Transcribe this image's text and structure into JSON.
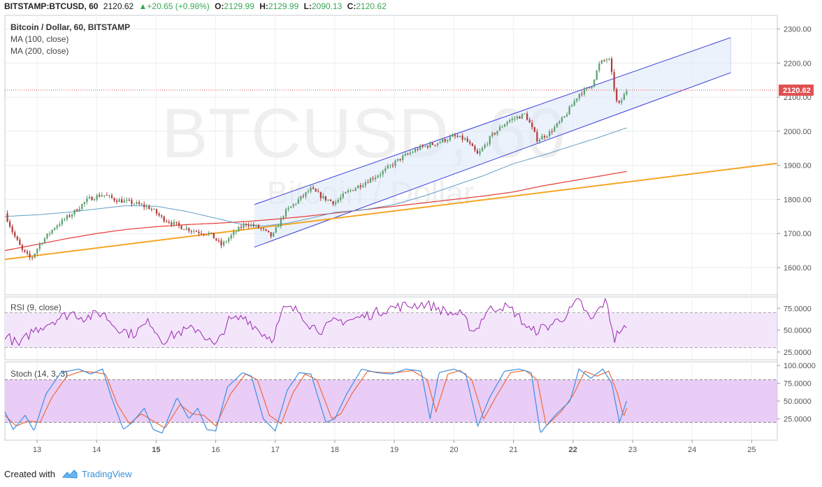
{
  "header": {
    "symbol": "BITSTAMP:BTCUSD, 60",
    "last": "2120.62",
    "change": "▲+20.65 (+0.98%)",
    "o_label": "O:",
    "o_val": "2129.99",
    "h_label": "H:",
    "h_val": "2129.99",
    "l_label": "L:",
    "l_val": "2090.13",
    "c_label": "C:",
    "c_val": "2120.62"
  },
  "legend": {
    "title": "Bitcoin / Dollar, 60, BITSTAMP",
    "ma100": "MA (100, close)",
    "ma200": "MA (200, close)",
    "rsi": "RSI (9, close)",
    "stoch": "Stoch (14, 3, 3)"
  },
  "watermark": {
    "big": "BTCUSD, 60",
    "small": "Bitcoin / Dollar"
  },
  "footer": {
    "created": "Created with",
    "brand": "TradingView"
  },
  "colors": {
    "bull": "#5a9e6f",
    "bear": "#b03a3a",
    "ma100": "#5f9ec4",
    "ma200": "#e53935",
    "trend": "#f5a623",
    "channel": "#3b3bdb",
    "rsi": "#9c27b0",
    "stoch_k": "#3d8fe0",
    "stoch_d": "#f06a3a"
  },
  "chart_data": [
    {
      "type": "candlestick",
      "title": "Bitcoin / Dollar, 60, BITSTAMP",
      "x_ticks": [
        {
          "label": "13",
          "x": 13,
          "bold": false
        },
        {
          "label": "14",
          "x": 14,
          "bold": false
        },
        {
          "label": "15",
          "x": 15,
          "bold": true
        },
        {
          "label": "16",
          "x": 16,
          "bold": false
        },
        {
          "label": "17",
          "x": 17,
          "bold": false
        },
        {
          "label": "18",
          "x": 18,
          "bold": false
        },
        {
          "label": "19",
          "x": 19,
          "bold": false
        },
        {
          "label": "20",
          "x": 20,
          "bold": false
        },
        {
          "label": "21",
          "x": 21,
          "bold": false
        },
        {
          "label": "22",
          "x": 22,
          "bold": true
        },
        {
          "label": "23",
          "x": 23,
          "bold": false
        },
        {
          "label": "24",
          "x": 24,
          "bold": false
        },
        {
          "label": "25",
          "x": 25,
          "bold": false
        }
      ],
      "x_range": [
        12.46,
        25.43
      ],
      "y_range": [
        1520,
        2340
      ],
      "y_ticks": [
        "1600.00",
        "1700.00",
        "1800.00",
        "1900.00",
        "2000.00",
        "2100.00",
        "2200.00",
        "2300.00"
      ],
      "last_price": 2120.62,
      "last_price_label": "2120.62",
      "price_anchors": [
        [
          12.46,
          1760
        ],
        [
          12.6,
          1700
        ],
        [
          12.75,
          1650
        ],
        [
          12.9,
          1625
        ],
        [
          13.05,
          1670
        ],
        [
          13.3,
          1720
        ],
        [
          13.6,
          1760
        ],
        [
          13.85,
          1800
        ],
        [
          14.1,
          1815
        ],
        [
          14.3,
          1800
        ],
        [
          14.6,
          1790
        ],
        [
          14.9,
          1775
        ],
        [
          15.1,
          1745
        ],
        [
          15.4,
          1720
        ],
        [
          15.7,
          1705
        ],
        [
          15.9,
          1700
        ],
        [
          16.1,
          1665
        ],
        [
          16.3,
          1700
        ],
        [
          16.5,
          1730
        ],
        [
          16.75,
          1715
        ],
        [
          16.95,
          1690
        ],
        [
          17.15,
          1760
        ],
        [
          17.4,
          1800
        ],
        [
          17.6,
          1830
        ],
        [
          17.8,
          1805
        ],
        [
          18.0,
          1790
        ],
        [
          18.2,
          1820
        ],
        [
          18.5,
          1850
        ],
        [
          18.8,
          1880
        ],
        [
          19.1,
          1920
        ],
        [
          19.4,
          1950
        ],
        [
          19.7,
          1965
        ],
        [
          20.0,
          1985
        ],
        [
          20.2,
          1975
        ],
        [
          20.4,
          1930
        ],
        [
          20.65,
          1990
        ],
        [
          20.9,
          2030
        ],
        [
          21.2,
          2050
        ],
        [
          21.4,
          1975
        ],
        [
          21.6,
          1995
        ],
        [
          21.85,
          2040
        ],
        [
          22.1,
          2110
        ],
        [
          22.3,
          2130
        ],
        [
          22.45,
          2200
        ],
        [
          22.6,
          2215
        ],
        [
          22.75,
          2070
        ],
        [
          22.9,
          2120
        ]
      ],
      "ma100": [
        [
          12.46,
          1750
        ],
        [
          13.0,
          1755
        ],
        [
          13.5,
          1762
        ],
        [
          14.0,
          1772
        ],
        [
          14.5,
          1782
        ],
        [
          15.0,
          1780
        ],
        [
          15.5,
          1765
        ],
        [
          16.0,
          1745
        ],
        [
          16.4,
          1728
        ],
        [
          16.8,
          1722
        ],
        [
          17.2,
          1730
        ],
        [
          17.6,
          1745
        ],
        [
          18.0,
          1762
        ],
        [
          18.5,
          1770
        ],
        [
          19.0,
          1785
        ],
        [
          19.5,
          1810
        ],
        [
          20.0,
          1840
        ],
        [
          20.5,
          1870
        ],
        [
          21.0,
          1905
        ],
        [
          21.5,
          1930
        ],
        [
          22.0,
          1958
        ],
        [
          22.4,
          1980
        ],
        [
          22.9,
          2010
        ]
      ],
      "ma200": [
        [
          12.46,
          1650
        ],
        [
          13.0,
          1668
        ],
        [
          13.5,
          1685
        ],
        [
          14.0,
          1700
        ],
        [
          14.5,
          1712
        ],
        [
          15.0,
          1720
        ],
        [
          15.5,
          1726
        ],
        [
          16.0,
          1730
        ],
        [
          16.5,
          1735
        ],
        [
          17.0,
          1742
        ],
        [
          17.5,
          1750
        ],
        [
          18.0,
          1760
        ],
        [
          18.5,
          1770
        ],
        [
          19.0,
          1780
        ],
        [
          19.5,
          1790
        ],
        [
          20.0,
          1800
        ],
        [
          20.5,
          1810
        ],
        [
          21.0,
          1822
        ],
        [
          21.5,
          1840
        ],
        [
          22.0,
          1855
        ],
        [
          22.5,
          1870
        ],
        [
          22.9,
          1882
        ]
      ],
      "trendline": [
        [
          12.46,
          1624
        ],
        [
          25.43,
          1906
        ]
      ],
      "channel": {
        "upper": [
          [
            16.65,
            1785
          ],
          [
            24.65,
            2275
          ]
        ],
        "lower": [
          [
            16.65,
            1660
          ],
          [
            24.65,
            2172
          ]
        ]
      }
    },
    {
      "type": "line",
      "title": "RSI (9, close)",
      "y_range": [
        16,
        88
      ],
      "y_ticks": [
        "25.0000",
        "50.0000",
        "75.0000"
      ],
      "band": [
        30,
        70
      ],
      "anchors": [
        [
          12.46,
          45
        ],
        [
          12.7,
          32
        ],
        [
          12.9,
          48
        ],
        [
          13.1,
          55
        ],
        [
          13.3,
          62
        ],
        [
          13.6,
          70
        ],
        [
          13.8,
          64
        ],
        [
          14.1,
          70
        ],
        [
          14.3,
          55
        ],
        [
          14.6,
          45
        ],
        [
          14.9,
          60
        ],
        [
          15.1,
          38
        ],
        [
          15.4,
          48
        ],
        [
          15.7,
          52
        ],
        [
          16.0,
          30
        ],
        [
          16.2,
          60
        ],
        [
          16.5,
          65
        ],
        [
          16.75,
          48
        ],
        [
          16.95,
          40
        ],
        [
          17.15,
          75
        ],
        [
          17.4,
          72
        ],
        [
          17.6,
          55
        ],
        [
          17.8,
          50
        ],
        [
          18.0,
          60
        ],
        [
          18.3,
          62
        ],
        [
          18.6,
          68
        ],
        [
          18.9,
          75
        ],
        [
          19.2,
          78
        ],
        [
          19.5,
          80
        ],
        [
          19.7,
          76
        ],
        [
          19.9,
          70
        ],
        [
          20.1,
          68
        ],
        [
          20.35,
          48
        ],
        [
          20.55,
          72
        ],
        [
          20.8,
          78
        ],
        [
          21.0,
          72
        ],
        [
          21.3,
          48
        ],
        [
          21.6,
          55
        ],
        [
          21.9,
          68
        ],
        [
          22.1,
          85
        ],
        [
          22.3,
          60
        ],
        [
          22.55,
          85
        ],
        [
          22.7,
          40
        ],
        [
          22.8,
          52
        ],
        [
          22.9,
          50
        ]
      ]
    },
    {
      "type": "line",
      "title": "Stoch (14, 3, 3)",
      "y_range": [
        -5,
        105
      ],
      "y_ticks": [
        "25.0000",
        "50.0000",
        "75.0000",
        "100.0000"
      ],
      "band": [
        20,
        80
      ],
      "k_anchors": [
        [
          12.46,
          35
        ],
        [
          12.6,
          10
        ],
        [
          12.8,
          30
        ],
        [
          12.95,
          8
        ],
        [
          13.15,
          60
        ],
        [
          13.4,
          90
        ],
        [
          13.7,
          95
        ],
        [
          13.9,
          88
        ],
        [
          14.1,
          95
        ],
        [
          14.25,
          55
        ],
        [
          14.45,
          10
        ],
        [
          14.6,
          20
        ],
        [
          14.8,
          40
        ],
        [
          14.95,
          10
        ],
        [
          15.1,
          5
        ],
        [
          15.35,
          55
        ],
        [
          15.55,
          25
        ],
        [
          15.7,
          40
        ],
        [
          15.85,
          10
        ],
        [
          16.0,
          8
        ],
        [
          16.2,
          70
        ],
        [
          16.45,
          90
        ],
        [
          16.6,
          85
        ],
        [
          16.8,
          25
        ],
        [
          17.0,
          8
        ],
        [
          17.2,
          65
        ],
        [
          17.4,
          90
        ],
        [
          17.6,
          88
        ],
        [
          17.85,
          20
        ],
        [
          18.0,
          25
        ],
        [
          18.2,
          60
        ],
        [
          18.45,
          95
        ],
        [
          18.7,
          90
        ],
        [
          18.95,
          88
        ],
        [
          19.2,
          95
        ],
        [
          19.45,
          92
        ],
        [
          19.6,
          25
        ],
        [
          19.75,
          90
        ],
        [
          20.0,
          95
        ],
        [
          20.2,
          88
        ],
        [
          20.4,
          15
        ],
        [
          20.6,
          55
        ],
        [
          20.85,
          92
        ],
        [
          21.1,
          95
        ],
        [
          21.3,
          90
        ],
        [
          21.45,
          5
        ],
        [
          21.7,
          30
        ],
        [
          21.95,
          50
        ],
        [
          22.1,
          95
        ],
        [
          22.3,
          82
        ],
        [
          22.5,
          95
        ],
        [
          22.65,
          75
        ],
        [
          22.78,
          20
        ],
        [
          22.9,
          50
        ]
      ],
      "d_anchors": [
        [
          12.46,
          30
        ],
        [
          12.65,
          15
        ],
        [
          12.85,
          22
        ],
        [
          13.05,
          20
        ],
        [
          13.25,
          55
        ],
        [
          13.5,
          85
        ],
        [
          13.75,
          92
        ],
        [
          14.0,
          90
        ],
        [
          14.15,
          88
        ],
        [
          14.35,
          45
        ],
        [
          14.55,
          18
        ],
        [
          14.75,
          32
        ],
        [
          14.95,
          22
        ],
        [
          15.15,
          12
        ],
        [
          15.4,
          45
        ],
        [
          15.6,
          32
        ],
        [
          15.8,
          30
        ],
        [
          16.0,
          15
        ],
        [
          16.25,
          60
        ],
        [
          16.5,
          88
        ],
        [
          16.7,
          80
        ],
        [
          16.9,
          30
        ],
        [
          17.1,
          18
        ],
        [
          17.3,
          62
        ],
        [
          17.5,
          88
        ],
        [
          17.7,
          80
        ],
        [
          17.95,
          25
        ],
        [
          18.1,
          32
        ],
        [
          18.3,
          62
        ],
        [
          18.55,
          92
        ],
        [
          18.8,
          90
        ],
        [
          19.05,
          90
        ],
        [
          19.3,
          93
        ],
        [
          19.55,
          80
        ],
        [
          19.7,
          35
        ],
        [
          19.9,
          88
        ],
        [
          20.1,
          93
        ],
        [
          20.3,
          80
        ],
        [
          20.5,
          25
        ],
        [
          20.7,
          55
        ],
        [
          20.95,
          90
        ],
        [
          21.2,
          93
        ],
        [
          21.4,
          80
        ],
        [
          21.55,
          15
        ],
        [
          21.8,
          35
        ],
        [
          22.0,
          58
        ],
        [
          22.2,
          92
        ],
        [
          22.4,
          85
        ],
        [
          22.6,
          92
        ],
        [
          22.75,
          60
        ],
        [
          22.85,
          28
        ],
        [
          22.9,
          40
        ]
      ]
    }
  ]
}
